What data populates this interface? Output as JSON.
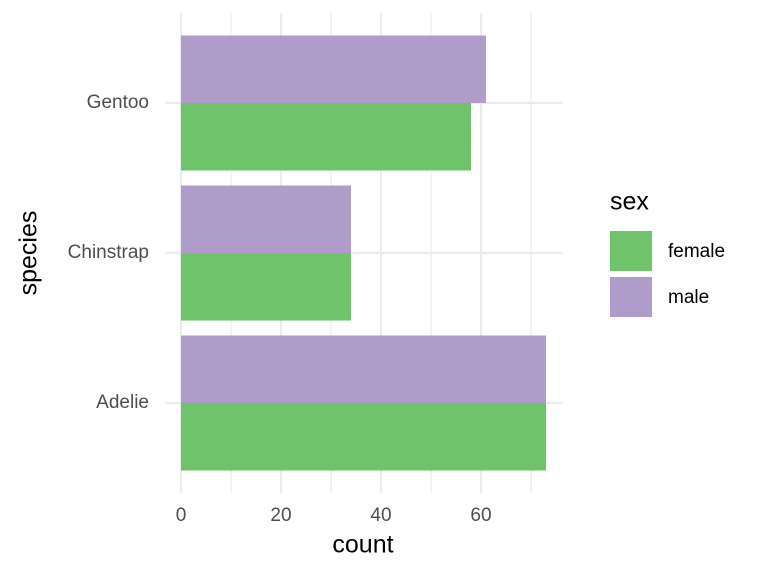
{
  "chart_data": {
    "type": "bar",
    "orientation": "horizontal",
    "position": "dodge",
    "x_label": "count",
    "y_label": "species",
    "legend_title": "sex",
    "categories": [
      "Adelie",
      "Chinstrap",
      "Gentoo"
    ],
    "series": [
      {
        "name": "female",
        "color": "#6fc36b",
        "values": [
          73,
          34,
          58
        ]
      },
      {
        "name": "male",
        "color": "#b09ccb",
        "values": [
          73,
          34,
          61
        ]
      }
    ],
    "xlim": [
      -3.2,
      76.4
    ],
    "xticks": [
      0,
      20,
      40,
      60
    ],
    "xminorticks": [
      10,
      30,
      50,
      70
    ],
    "grid": true,
    "legend": "right"
  }
}
